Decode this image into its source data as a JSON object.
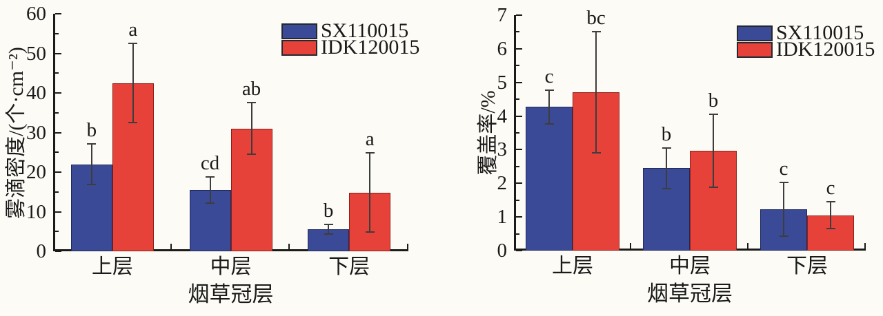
{
  "figure": {
    "background": "#fcfbf5",
    "axis_color": "#1a1a1a",
    "text_color": "#1a1a1a",
    "error_bar_color": "#3d3d3d",
    "series_colors": {
      "SX110015": {
        "fill": "#3b4a97",
        "border": "#1e2a5a"
      },
      "IDK120015": {
        "fill": "#e7423a",
        "border": "#8c1f18"
      }
    }
  },
  "chart_data": [
    {
      "type": "bar",
      "title": "",
      "ylabel": "雾滴密度/(个·cm⁻²)",
      "xlabel": "烟草冠层",
      "categories": [
        "上层",
        "中层",
        "下层"
      ],
      "ylim": [
        0,
        60
      ],
      "yticks": [
        0,
        10,
        20,
        30,
        40,
        50,
        60
      ],
      "minor_tick_step": 5,
      "grid": false,
      "legend_position": "top-right-inside",
      "legend": [
        "SX110015",
        "IDK120015"
      ],
      "series": [
        {
          "name": "SX110015",
          "values": [
            22,
            15.4,
            5.6
          ],
          "errors": [
            5.2,
            3.3,
            1.2
          ],
          "sig_letters": [
            "b",
            "cd",
            "b"
          ]
        },
        {
          "name": "IDK120015",
          "values": [
            42.5,
            31,
            14.8
          ],
          "errors": [
            10,
            6.5,
            10
          ],
          "sig_letters": [
            "a",
            "ab",
            "a"
          ]
        }
      ]
    },
    {
      "type": "bar",
      "title": "",
      "ylabel": "覆盖率/%",
      "xlabel": "烟草冠层",
      "categories": [
        "上层",
        "中层",
        "下层"
      ],
      "ylim": [
        0,
        7
      ],
      "yticks": [
        0,
        1,
        2,
        3,
        4,
        5,
        6,
        7
      ],
      "minor_tick_step": 0.5,
      "grid": false,
      "legend_position": "top-right-inside",
      "legend": [
        "SX110015",
        "IDK120015"
      ],
      "series": [
        {
          "name": "SX110015",
          "values": [
            4.27,
            2.45,
            1.22
          ],
          "errors": [
            0.5,
            0.6,
            0.8
          ],
          "sig_letters": [
            "c",
            "b",
            "c"
          ]
        },
        {
          "name": "IDK120015",
          "values": [
            4.7,
            2.97,
            1.05
          ],
          "errors": [
            1.8,
            1.08,
            0.4
          ],
          "sig_letters": [
            "bc",
            "b",
            "c"
          ]
        }
      ]
    }
  ]
}
